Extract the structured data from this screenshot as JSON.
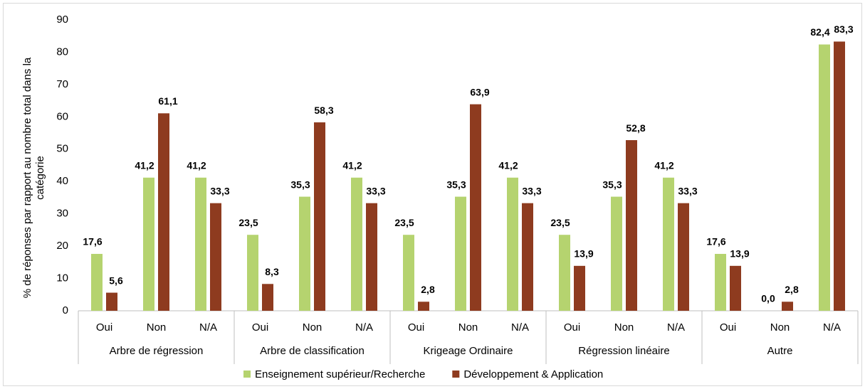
{
  "chart_data": {
    "type": "bar",
    "ylabel": "% de réponses par rapport au nombre total dans la catégorie",
    "categories": [
      "Oui",
      "Non",
      "N/A",
      "Oui",
      "Non",
      "N/A",
      "Oui",
      "Non",
      "N/A",
      "Oui",
      "Non",
      "N/A",
      "Oui",
      "Non",
      "N/A"
    ],
    "groups": [
      "Arbre de régression",
      "Arbre de classification",
      "Krigeage Ordinaire",
      "Régression linéaire",
      "Autre"
    ],
    "series": [
      {
        "name": "Enseignement supérieur/Recherche",
        "color": "#b5d36f",
        "values": [
          17.6,
          41.2,
          41.2,
          23.5,
          35.3,
          41.2,
          23.5,
          35.3,
          41.2,
          23.5,
          35.3,
          41.2,
          17.6,
          0.0,
          82.4
        ],
        "value_labels": [
          "17,6",
          "41,2",
          "41,2",
          "23,5",
          "35,3",
          "41,2",
          "23,5",
          "35,3",
          "41,2",
          "23,5",
          "35,3",
          "41,2",
          "17,6",
          "0,0",
          "82,4"
        ]
      },
      {
        "name": "Développement & Application",
        "color": "#8e3b1f",
        "values": [
          5.6,
          61.1,
          33.3,
          8.3,
          58.3,
          33.3,
          2.8,
          63.9,
          33.3,
          13.9,
          52.8,
          33.3,
          13.9,
          2.8,
          83.3
        ],
        "value_labels": [
          "5,6",
          "61,1",
          "33,3",
          "8,3",
          "58,3",
          "33,3",
          "2,8",
          "63,9",
          "33,3",
          "13,9",
          "52,8",
          "33,3",
          "13,9",
          "2,8",
          "83,3"
        ]
      }
    ],
    "ylim": [
      0,
      90
    ],
    "yticks": [
      0,
      10,
      20,
      30,
      40,
      50,
      60,
      70,
      80,
      90
    ],
    "grid": false,
    "legend": "bottom"
  }
}
